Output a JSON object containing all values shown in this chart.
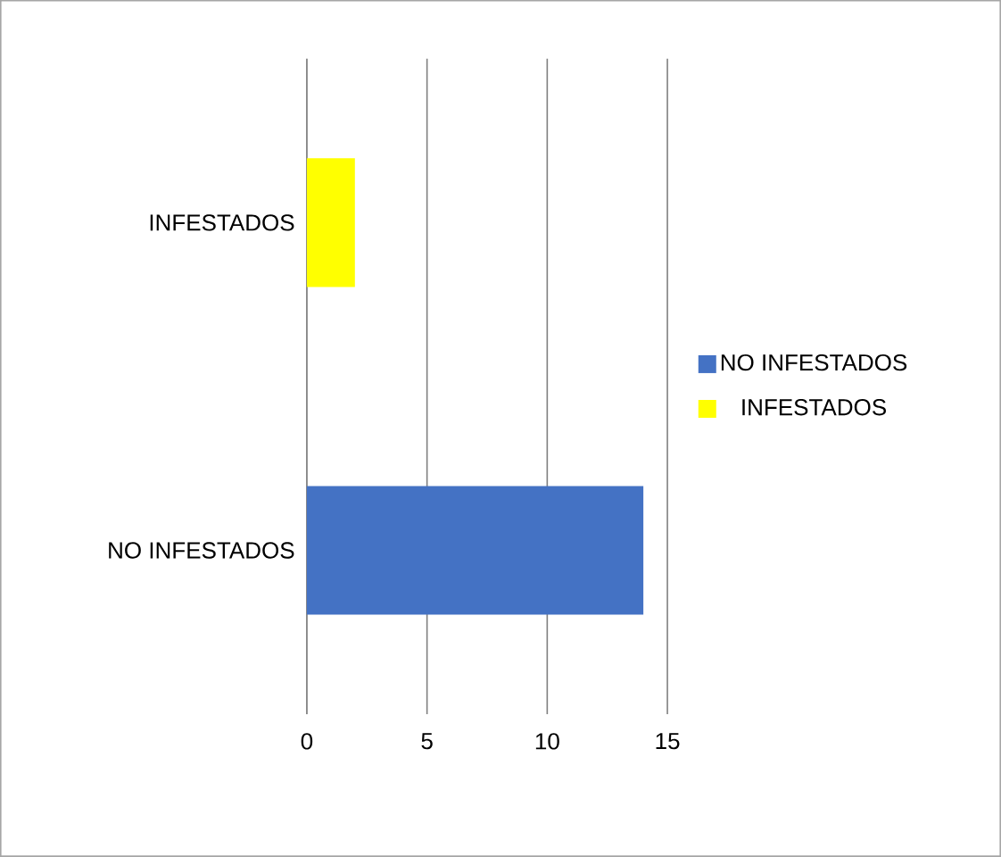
{
  "chart_data": {
    "type": "bar",
    "orientation": "horizontal",
    "categories": [
      "INFESTADOS",
      "NO INFESTADOS"
    ],
    "series": [
      {
        "name": "NO INFESTADOS",
        "color": "#4472c4",
        "values": [
          null,
          14
        ]
      },
      {
        "name": "INFESTADOS",
        "color": "#ffff00",
        "values": [
          2,
          null
        ]
      }
    ],
    "xlim": [
      0,
      15
    ],
    "xticks": [
      0,
      5,
      10,
      15
    ],
    "grid": "x",
    "legend": "right"
  }
}
